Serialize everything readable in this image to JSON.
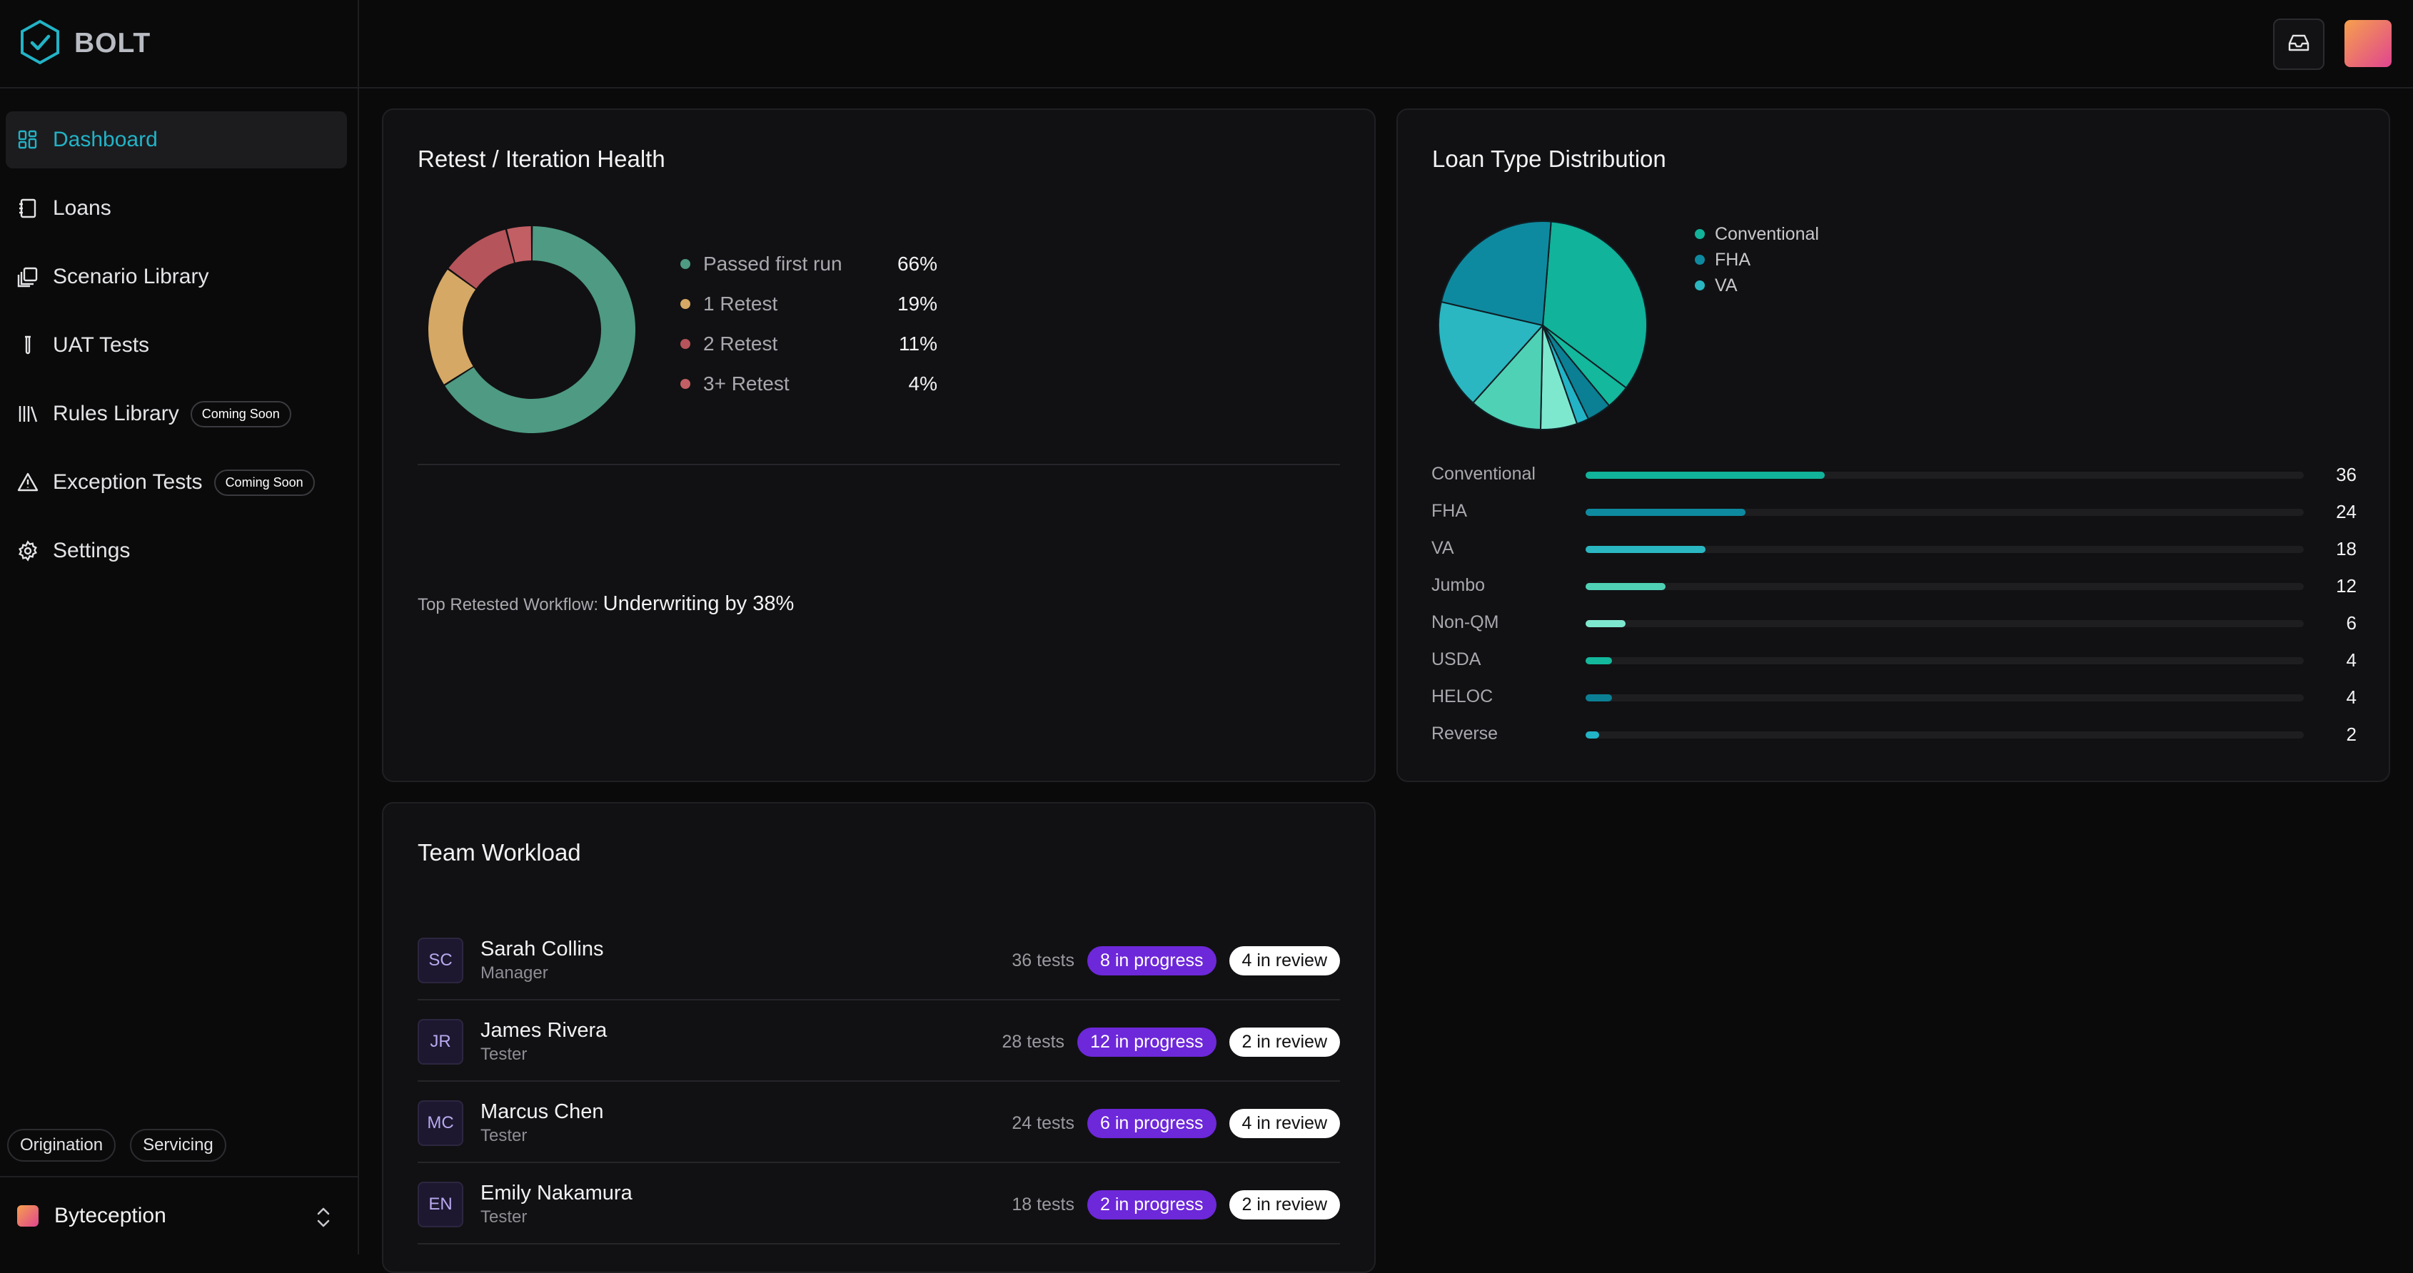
{
  "brand": {
    "name": "BOLT"
  },
  "sidebar": {
    "items": [
      {
        "label": "Dashboard",
        "icon": "dashboard-icon",
        "active": true
      },
      {
        "label": "Loans",
        "icon": "notebook-icon"
      },
      {
        "label": "Scenario Library",
        "icon": "library-icon"
      },
      {
        "label": "UAT Tests",
        "icon": "test-tube-icon"
      },
      {
        "label": "Rules Library",
        "icon": "books-icon",
        "badge": "Coming Soon"
      },
      {
        "label": "Exception Tests",
        "icon": "warning-icon",
        "badge": "Coming Soon"
      },
      {
        "label": "Settings",
        "icon": "gear-icon"
      }
    ],
    "env_tags": [
      "Origination",
      "Servicing"
    ],
    "org": {
      "name": "Byteception"
    }
  },
  "retest": {
    "title": "Retest / Iteration Health",
    "legend": [
      {
        "label": "Passed first run",
        "pct": "66%",
        "value": 66,
        "color": "#4e9a82"
      },
      {
        "label": "1 Retest",
        "pct": "19%",
        "value": 19,
        "color": "#d6a865"
      },
      {
        "label": "2 Retest",
        "pct": "11%",
        "value": 11,
        "color": "#b5545a"
      },
      {
        "label": "3+ Retest",
        "pct": "4%",
        "value": 4,
        "color": "#c25f64"
      }
    ],
    "top_label": "Top Retested Workflow:",
    "top_value": "Underwriting by 38%"
  },
  "loan_dist": {
    "title": "Loan Type Distribution",
    "legend": [
      {
        "label": "Conventional",
        "color": "#11b39a"
      },
      {
        "label": "FHA",
        "color": "#0e8aa0"
      },
      {
        "label": "VA",
        "color": "#2ab7c1"
      }
    ],
    "rows": [
      {
        "label": "Conventional",
        "value": 36,
        "color": "#11b39a"
      },
      {
        "label": "FHA",
        "value": 24,
        "color": "#0e8aa0"
      },
      {
        "label": "VA",
        "value": 18,
        "color": "#2ab7c1"
      },
      {
        "label": "Jumbo",
        "value": 12,
        "color": "#4fd1b5"
      },
      {
        "label": "Non-QM",
        "value": 6,
        "color": "#7ee8cf"
      },
      {
        "label": "USDA",
        "value": 4,
        "color": "#14b89c"
      },
      {
        "label": "HELOC",
        "value": 4,
        "color": "#0b7f93"
      },
      {
        "label": "Reverse",
        "value": 2,
        "color": "#22b3c6"
      }
    ]
  },
  "chart_data": [
    {
      "type": "pie",
      "title": "Retest / Iteration Health",
      "categories": [
        "Passed first run",
        "1 Retest",
        "2 Retest",
        "3+ Retest"
      ],
      "values": [
        66,
        19,
        11,
        4
      ]
    },
    {
      "type": "pie",
      "title": "Loan Type Distribution",
      "categories": [
        "Conventional",
        "FHA",
        "VA",
        "Jumbo",
        "Non-QM",
        "USDA",
        "HELOC",
        "Reverse"
      ],
      "values": [
        36,
        24,
        18,
        12,
        6,
        4,
        4,
        2
      ]
    }
  ],
  "team": {
    "title": "Team Workload",
    "members": [
      {
        "initials": "SC",
        "name": "Sarah Collins",
        "role": "Manager",
        "tests": "36 tests",
        "progress": "8 in progress",
        "review": "4 in review"
      },
      {
        "initials": "JR",
        "name": "James Rivera",
        "role": "Tester",
        "tests": "28 tests",
        "progress": "12 in progress",
        "review": "2 in review"
      },
      {
        "initials": "MC",
        "name": "Marcus Chen",
        "role": "Tester",
        "tests": "24 tests",
        "progress": "6 in progress",
        "review": "4 in review"
      },
      {
        "initials": "EN",
        "name": "Emily Nakamura",
        "role": "Tester",
        "tests": "18 tests",
        "progress": "2 in progress",
        "review": "2 in review"
      }
    ]
  }
}
